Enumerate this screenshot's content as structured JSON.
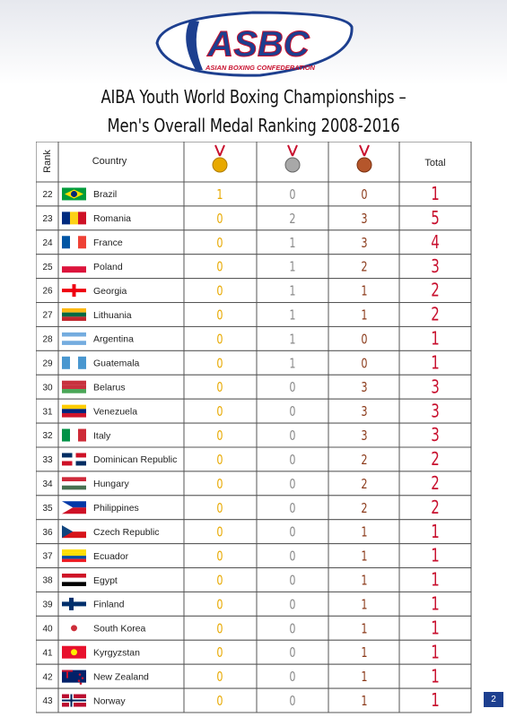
{
  "logo": {
    "name": "ASBC",
    "subtitle": "ASIAN BOXING CONFEDERATION"
  },
  "title": [
    "AIBA Youth World Boxing Championships –",
    "Men's Overall Medal Ranking 2008-2016"
  ],
  "table": {
    "header": {
      "rank": "Rank",
      "country": "Country",
      "total": "Total"
    },
    "rows": [
      [
        22,
        "Brazil",
        1,
        0,
        0,
        1
      ],
      [
        23,
        "Romania",
        0,
        2,
        3,
        5
      ],
      [
        24,
        "France",
        0,
        1,
        3,
        4
      ],
      [
        25,
        "Poland",
        0,
        1,
        2,
        3
      ],
      [
        26,
        "Georgia",
        0,
        1,
        1,
        2
      ],
      [
        27,
        "Lithuania",
        0,
        1,
        1,
        2
      ],
      [
        28,
        "Argentina",
        0,
        1,
        0,
        1
      ],
      [
        29,
        "Guatemala",
        0,
        1,
        0,
        1
      ],
      [
        30,
        "Belarus",
        0,
        0,
        3,
        3
      ],
      [
        31,
        "Venezuela",
        0,
        0,
        3,
        3
      ],
      [
        32,
        "Italy",
        0,
        0,
        3,
        3
      ],
      [
        33,
        "Dominican Republic",
        0,
        0,
        2,
        2
      ],
      [
        34,
        "Hungary",
        0,
        0,
        2,
        2
      ],
      [
        35,
        "Philippines",
        0,
        0,
        2,
        2
      ],
      [
        36,
        "Czech Republic",
        0,
        0,
        1,
        1
      ],
      [
        37,
        "Ecuador",
        0,
        0,
        1,
        1
      ],
      [
        38,
        "Egypt",
        0,
        0,
        1,
        1
      ],
      [
        39,
        "Finland",
        0,
        0,
        1,
        1
      ],
      [
        40,
        "South Korea",
        0,
        0,
        1,
        1
      ],
      [
        41,
        "Kyrgyzstan",
        0,
        0,
        1,
        1
      ],
      [
        42,
        "New Zealand",
        0,
        0,
        1,
        1
      ],
      [
        43,
        "Norway",
        0,
        0,
        1,
        1
      ]
    ]
  },
  "page_number": "2"
}
